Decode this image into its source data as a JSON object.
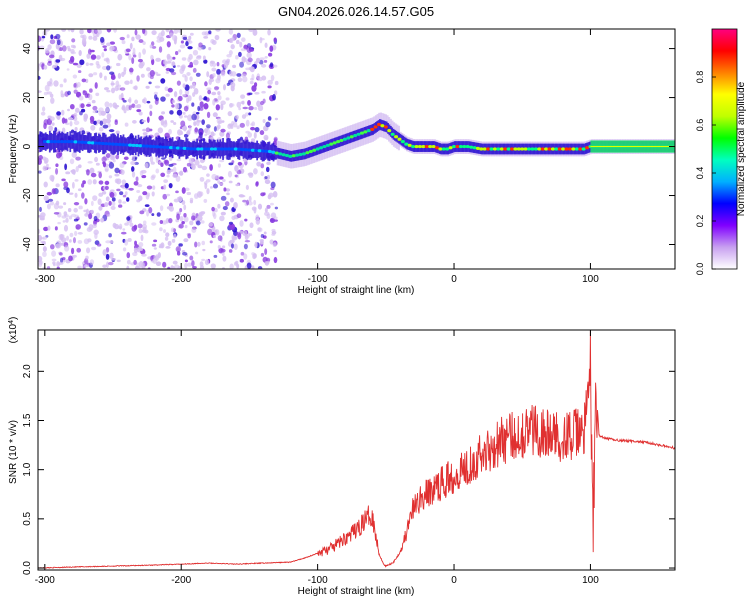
{
  "title": "GN04.2026.026.14.57.G05",
  "colors": {
    "snr_line": "#e03030",
    "spectrum_dense": "#2a10d0",
    "spectrum_sparse": "#8a3de0",
    "spectrum_faint": "#d6c0f2",
    "axis": "#000000"
  },
  "chart_data": [
    {
      "type": "heatmap",
      "title": "GN04.2026.026.14.57.G05",
      "xlabel": "Height of straight line (km)",
      "ylabel": "Frequency (Hz)",
      "xlim": [
        -305,
        162
      ],
      "ylim": [
        -50,
        48
      ],
      "x_ticks": [
        -300,
        -200,
        -100,
        0,
        100
      ],
      "x_tick_labels": [
        "-300",
        "-200",
        "-100",
        "0",
        "100"
      ],
      "y_ticks": [
        -40,
        -20,
        0,
        20,
        40
      ],
      "y_tick_labels": [
        "-40",
        "-20",
        "0",
        "20",
        "40"
      ],
      "ridge": {
        "x": [
          -305,
          -280,
          -250,
          -220,
          -190,
          -160,
          -135,
          -120,
          -110,
          -100,
          -90,
          -80,
          -70,
          -60,
          -55,
          -50,
          -45,
          -40,
          -35,
          -30,
          -25,
          -20,
          -15,
          -10,
          -5,
          0,
          10,
          20,
          40,
          60,
          80,
          90,
          95,
          100,
          120,
          140,
          162
        ],
        "freq": [
          2,
          2,
          1,
          0,
          -1,
          -1,
          -2,
          -4,
          -3,
          -1,
          1,
          3,
          5,
          7,
          9,
          8,
          5,
          3,
          1,
          0,
          0,
          0,
          0,
          -1,
          -1,
          0,
          0,
          -1,
          -1,
          -1,
          -1,
          -1,
          -1,
          0,
          0,
          0,
          0
        ]
      },
      "colorbar": {
        "label": "Normalized spectral amplitude",
        "range": [
          0,
          1
        ],
        "ticks": [
          0.0,
          0.2,
          0.4,
          0.6,
          0.8
        ],
        "tick_labels": [
          "0.0",
          "0.2",
          "0.4",
          "0.6",
          "0.8"
        ],
        "colors": [
          "#ffffff",
          "#c8a0f0",
          "#8000ff",
          "#0000ff",
          "#00b0ff",
          "#00ffc0",
          "#00ff00",
          "#c0ff00",
          "#ffff00",
          "#ff8000",
          "#ff0000",
          "#ff0080"
        ]
      }
    },
    {
      "type": "line",
      "xlabel": "Height of straight line (km)",
      "ylabel": "SNR (10 * v/v)",
      "multiplier_label": "(x10",
      "multiplier_exp": "4",
      "multiplier_close": ")",
      "xlim": [
        -305,
        162
      ],
      "ylim": [
        -0.02,
        2.42
      ],
      "x_ticks": [
        -300,
        -200,
        -100,
        0,
        100
      ],
      "x_tick_labels": [
        "-300",
        "-200",
        "-100",
        "0",
        "100"
      ],
      "y_ticks": [
        0.0,
        0.5,
        1.0,
        1.5,
        2.0
      ],
      "y_tick_labels": [
        "0.0",
        "0.5",
        "1.0",
        "1.5",
        "2.0"
      ],
      "series": [
        {
          "name": "SNR",
          "x": [
            -305,
            -280,
            -250,
            -220,
            -200,
            -180,
            -160,
            -140,
            -120,
            -110,
            -100,
            -90,
            -80,
            -70,
            -65,
            -60,
            -57,
            -55,
            -52,
            -50,
            -45,
            -40,
            -35,
            -30,
            -25,
            -20,
            -15,
            -10,
            -5,
            0,
            5,
            10,
            15,
            20,
            25,
            30,
            35,
            40,
            45,
            50,
            55,
            60,
            65,
            70,
            75,
            80,
            85,
            90,
            95,
            98,
            100,
            102,
            104,
            106,
            110,
            120,
            140,
            162
          ],
          "y": [
            0.0,
            0.01,
            0.02,
            0.03,
            0.04,
            0.05,
            0.04,
            0.05,
            0.06,
            0.1,
            0.15,
            0.2,
            0.3,
            0.4,
            0.5,
            0.55,
            0.3,
            0.15,
            0.05,
            0.02,
            0.05,
            0.15,
            0.35,
            0.6,
            0.7,
            0.75,
            0.8,
            0.85,
            0.9,
            0.95,
            1.0,
            1.05,
            1.1,
            1.15,
            1.2,
            1.25,
            1.3,
            1.32,
            1.35,
            1.38,
            1.4,
            1.42,
            1.38,
            1.35,
            1.33,
            1.35,
            1.34,
            1.36,
            1.4,
            1.6,
            2.2,
            0.3,
            1.7,
            1.35,
            1.32,
            1.3,
            1.28,
            1.22
          ]
        }
      ]
    }
  ]
}
